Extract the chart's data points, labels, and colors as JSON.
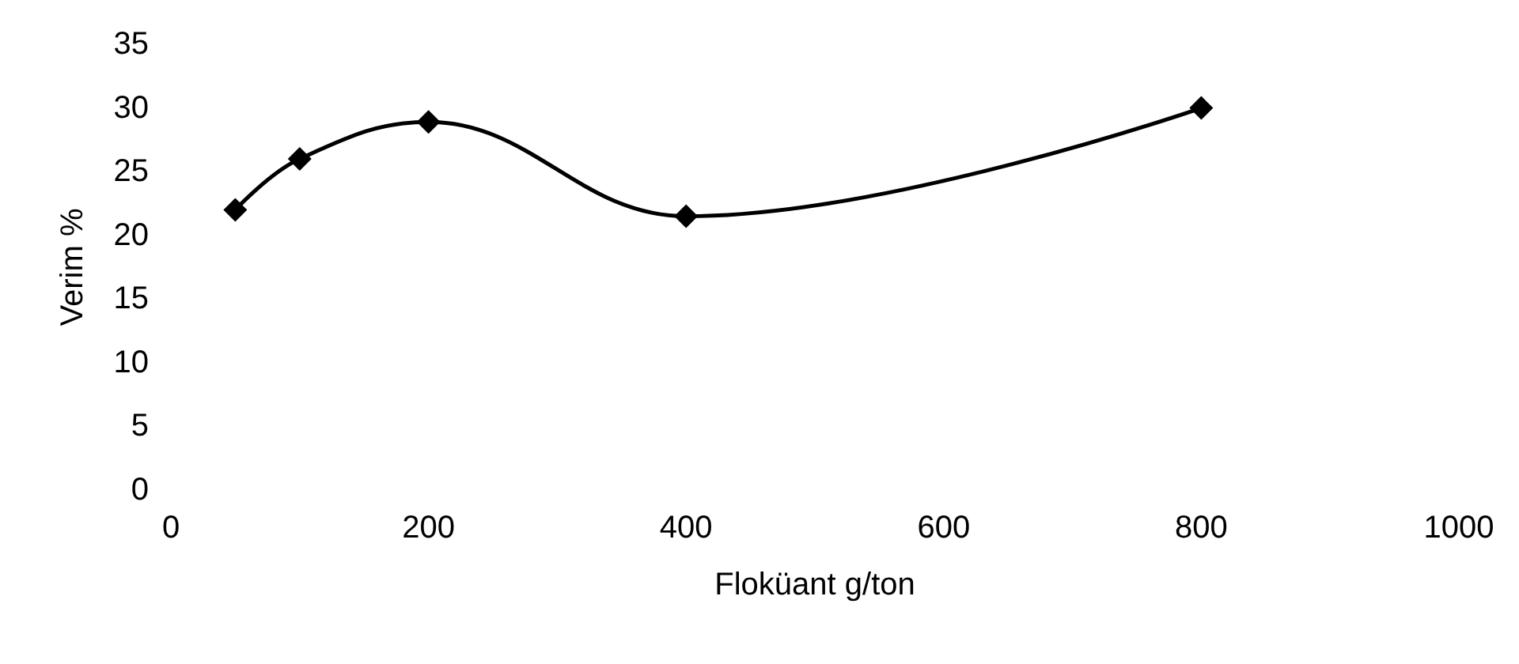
{
  "chart_data": {
    "type": "line",
    "xlabel": "Floküant g/ton",
    "ylabel": "Verim %",
    "x": [
      50,
      100,
      200,
      400,
      800
    ],
    "series": [
      {
        "color": "#000000",
        "values": [
          22,
          26,
          28.9,
          21.5,
          30
        ]
      }
    ],
    "xlim": [
      0,
      1000
    ],
    "xticks": [
      0,
      200,
      400,
      600,
      800,
      1000
    ],
    "ylim": [
      0,
      35
    ],
    "yticks": [
      0,
      5,
      10,
      15,
      20,
      25,
      30,
      35
    ],
    "marker": "diamond",
    "line_style": "solid"
  }
}
